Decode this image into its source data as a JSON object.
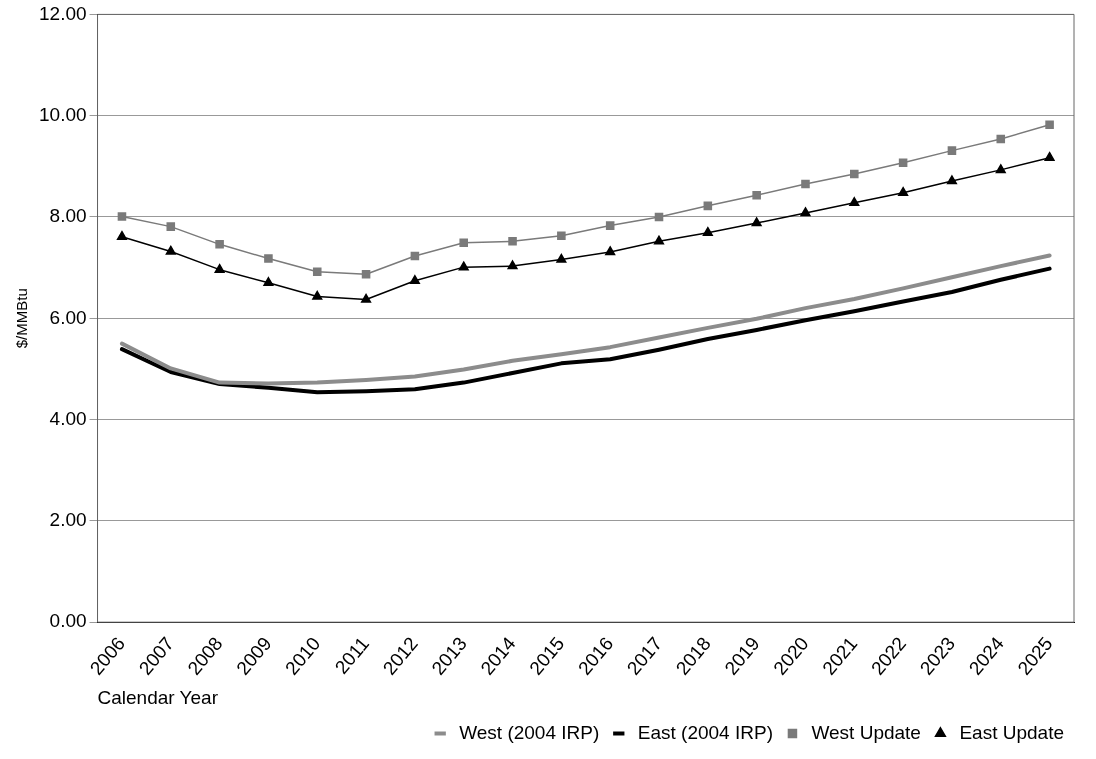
{
  "chart_data": {
    "type": "line",
    "xlabel": "Calendar Year",
    "ylabel": "$/MMBtu",
    "categories": [
      "2006",
      "2007",
      "2008",
      "2009",
      "2010",
      "2011",
      "2012",
      "2013",
      "2014",
      "2015",
      "2016",
      "2017",
      "2018",
      "2019",
      "2020",
      "2021",
      "2022",
      "2023",
      "2024",
      "2025"
    ],
    "series": [
      {
        "name": "West (2004 IRP)",
        "color": "#8c8c8c",
        "marker": "none",
        "values": [
          5.5,
          5.01,
          4.73,
          4.71,
          4.73,
          4.78,
          4.85,
          4.99,
          5.16,
          5.29,
          5.43,
          5.62,
          5.81,
          5.99,
          6.2,
          6.38,
          6.59,
          6.81,
          7.03,
          7.24
        ]
      },
      {
        "name": "East (2004 IRP)",
        "color": "#000000",
        "marker": "none",
        "values": [
          5.39,
          4.94,
          4.7,
          4.63,
          4.54,
          4.56,
          4.6,
          4.73,
          4.92,
          5.11,
          5.19,
          5.38,
          5.59,
          5.77,
          5.96,
          6.14,
          6.33,
          6.52,
          6.76,
          6.98
        ]
      },
      {
        "name": "West Update",
        "color": "#7a7a7a",
        "marker": "square",
        "values": [
          8.01,
          7.81,
          7.46,
          7.18,
          6.92,
          6.87,
          7.23,
          7.49,
          7.52,
          7.63,
          7.83,
          8.0,
          8.22,
          8.43,
          8.65,
          8.85,
          9.07,
          9.31,
          9.54,
          9.82
        ]
      },
      {
        "name": "East Update",
        "color": "#000000",
        "marker": "triangle",
        "values": [
          7.61,
          7.32,
          6.96,
          6.7,
          6.43,
          6.37,
          6.74,
          7.01,
          7.03,
          7.16,
          7.31,
          7.52,
          7.69,
          7.88,
          8.08,
          8.28,
          8.48,
          8.71,
          8.93,
          9.17
        ]
      }
    ],
    "ylim": [
      0,
      12
    ],
    "yticks": [
      {
        "value": 0,
        "label": "0.00"
      },
      {
        "value": 2,
        "label": "2.00"
      },
      {
        "value": 4,
        "label": "4.00"
      },
      {
        "value": 6,
        "label": "6.00"
      },
      {
        "value": 8,
        "label": "8.00"
      },
      {
        "value": 10,
        "label": "10.00"
      },
      {
        "value": 12,
        "label": "12.00"
      }
    ],
    "grid": "y",
    "legend": "bottom right",
    "line_style": "solid"
  }
}
